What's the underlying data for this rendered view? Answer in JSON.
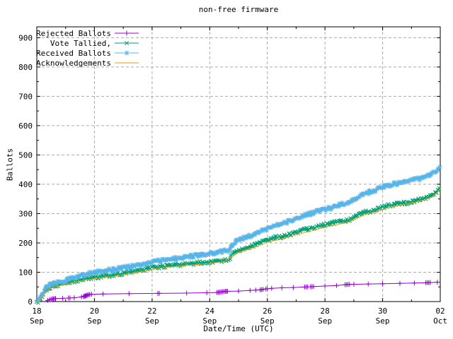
{
  "page": {
    "background": "#ffffff"
  },
  "chart_data": {
    "type": "line",
    "title": "non-free firmware",
    "xlabel": "Date/Time (UTC)",
    "ylabel": "Ballots",
    "xlim": [
      0,
      14
    ],
    "ylim": [
      0,
      937
    ],
    "x_axis_note": "x unit = days since 18 Sep 00:00 UTC",
    "x_major_ticks": [
      {
        "d": 0,
        "top": "18",
        "bot": "Sep"
      },
      {
        "d": 2,
        "top": "20",
        "bot": "Sep"
      },
      {
        "d": 4,
        "top": "22",
        "bot": "Sep"
      },
      {
        "d": 6,
        "top": "24",
        "bot": "Sep"
      },
      {
        "d": 8,
        "top": "26",
        "bot": "Sep"
      },
      {
        "d": 10,
        "top": "28",
        "bot": "Sep"
      },
      {
        "d": 12,
        "top": "30",
        "bot": "Sep"
      },
      {
        "d": 14,
        "top": "02",
        "bot": "Oct"
      }
    ],
    "x_minor_ticks": [
      1,
      3,
      5,
      7,
      9,
      11,
      13
    ],
    "y_major_ticks": [
      0,
      100,
      200,
      300,
      400,
      500,
      600,
      700,
      800,
      900
    ],
    "y_minor_ticks": [
      50,
      150,
      250,
      350,
      450,
      550,
      650,
      750,
      850
    ],
    "grid": {
      "show": true,
      "color": "#aaaaaa",
      "dash": "4,3"
    },
    "frame_color": "#000000",
    "legend": {
      "position": "top-left-inside"
    },
    "series": [
      {
        "name": "Rejected Ballots",
        "color": "#9400d3",
        "marker": "plus",
        "style": "linespoints-sparse",
        "points": [
          [
            0.3,
            0
          ],
          [
            0.38,
            4
          ],
          [
            0.45,
            7
          ],
          [
            0.55,
            9
          ],
          [
            0.65,
            10
          ],
          [
            0.9,
            11
          ],
          [
            1.1,
            12
          ],
          [
            1.3,
            13
          ],
          [
            1.5,
            15
          ],
          [
            1.62,
            17
          ],
          [
            1.7,
            20
          ],
          [
            1.78,
            23
          ],
          [
            1.9,
            25
          ],
          [
            2.3,
            26
          ],
          [
            3.2,
            27
          ],
          [
            4.2,
            28
          ],
          [
            5.2,
            29
          ],
          [
            5.9,
            30
          ],
          [
            6.25,
            31
          ],
          [
            6.4,
            33
          ],
          [
            6.55,
            35
          ],
          [
            7.0,
            36
          ],
          [
            7.4,
            38
          ],
          [
            7.75,
            40
          ],
          [
            7.95,
            43
          ],
          [
            8.15,
            45
          ],
          [
            8.5,
            47
          ],
          [
            8.9,
            48
          ],
          [
            9.3,
            50
          ],
          [
            9.6,
            51
          ],
          [
            10.0,
            53
          ],
          [
            10.4,
            55
          ],
          [
            10.75,
            58
          ],
          [
            11.0,
            59
          ],
          [
            11.5,
            60
          ],
          [
            12.0,
            61
          ],
          [
            12.6,
            62
          ],
          [
            13.1,
            63
          ],
          [
            13.5,
            64
          ],
          [
            13.65,
            65
          ],
          [
            13.9,
            66
          ],
          [
            14.0,
            67
          ]
        ],
        "marker_days": [
          0.38,
          0.45,
          0.5,
          0.55,
          0.58,
          0.62,
          0.65,
          0.9,
          1.1,
          1.15,
          1.3,
          1.55,
          1.62,
          1.65,
          1.68,
          1.7,
          1.73,
          1.76,
          1.8,
          1.84,
          1.9,
          2.3,
          3.2,
          4.2,
          4.25,
          5.2,
          5.9,
          6.25,
          6.3,
          6.35,
          6.4,
          6.45,
          6.5,
          6.55,
          6.58,
          6.62,
          7.0,
          7.4,
          7.6,
          7.75,
          7.8,
          7.85,
          7.95,
          8.0,
          8.15,
          8.5,
          8.9,
          9.3,
          9.35,
          9.4,
          9.5,
          9.55,
          9.6,
          10.0,
          10.4,
          10.7,
          10.75,
          10.8,
          10.85,
          11.0,
          11.5,
          12.0,
          12.6,
          13.1,
          13.5,
          13.55,
          13.6,
          13.65,
          13.9
        ]
      },
      {
        "name": "Vote Tallied,",
        "color": "#009e73",
        "marker": "cross",
        "style": "linespoints-dense",
        "points": [
          [
            0,
            0
          ],
          [
            0.05,
            2
          ],
          [
            0.1,
            7
          ],
          [
            0.15,
            13
          ],
          [
            0.2,
            20
          ],
          [
            0.25,
            28
          ],
          [
            0.3,
            36
          ],
          [
            0.4,
            45
          ],
          [
            0.5,
            50
          ],
          [
            0.6,
            54
          ],
          [
            0.8,
            58
          ],
          [
            1.0,
            62
          ],
          [
            1.2,
            68
          ],
          [
            1.4,
            73
          ],
          [
            1.6,
            77
          ],
          [
            1.8,
            80
          ],
          [
            2.0,
            82
          ],
          [
            2.2,
            85
          ],
          [
            2.5,
            89
          ],
          [
            2.8,
            93
          ],
          [
            3.1,
            98
          ],
          [
            3.4,
            103
          ],
          [
            3.7,
            108
          ],
          [
            4.0,
            116
          ],
          [
            4.3,
            119
          ],
          [
            4.6,
            122
          ],
          [
            5.0,
            126
          ],
          [
            5.4,
            130
          ],
          [
            5.8,
            133
          ],
          [
            6.0,
            135
          ],
          [
            6.3,
            139
          ],
          [
            6.5,
            141
          ],
          [
            6.65,
            143
          ],
          [
            6.75,
            156
          ],
          [
            6.85,
            166
          ],
          [
            7.0,
            175
          ],
          [
            7.2,
            183
          ],
          [
            7.5,
            192
          ],
          [
            7.8,
            202
          ],
          [
            8.0,
            208
          ],
          [
            8.2,
            216
          ],
          [
            8.5,
            222
          ],
          [
            8.8,
            229
          ],
          [
            9.0,
            237
          ],
          [
            9.3,
            246
          ],
          [
            9.6,
            252
          ],
          [
            9.9,
            259
          ],
          [
            10.2,
            266
          ],
          [
            10.5,
            273
          ],
          [
            10.8,
            279
          ],
          [
            11.0,
            288
          ],
          [
            11.2,
            299
          ],
          [
            11.4,
            305
          ],
          [
            11.7,
            311
          ],
          [
            12.0,
            322
          ],
          [
            12.2,
            327
          ],
          [
            12.5,
            332
          ],
          [
            12.8,
            337
          ],
          [
            13.0,
            341
          ],
          [
            13.3,
            348
          ],
          [
            13.6,
            357
          ],
          [
            13.8,
            368
          ],
          [
            13.9,
            378
          ],
          [
            14.0,
            390
          ]
        ]
      },
      {
        "name": "Received Ballots",
        "color": "#56b4e9",
        "marker": "asterisk",
        "style": "linespoints-dense",
        "points": [
          [
            0,
            0
          ],
          [
            0.05,
            3
          ],
          [
            0.1,
            10
          ],
          [
            0.15,
            18
          ],
          [
            0.2,
            27
          ],
          [
            0.25,
            36
          ],
          [
            0.3,
            44
          ],
          [
            0.4,
            53
          ],
          [
            0.5,
            58
          ],
          [
            0.6,
            62
          ],
          [
            0.8,
            67
          ],
          [
            1.0,
            72
          ],
          [
            1.2,
            79
          ],
          [
            1.4,
            85
          ],
          [
            1.6,
            90
          ],
          [
            1.8,
            95
          ],
          [
            2.0,
            100
          ],
          [
            2.2,
            104
          ],
          [
            2.5,
            108
          ],
          [
            2.8,
            112
          ],
          [
            3.1,
            117
          ],
          [
            3.4,
            122
          ],
          [
            3.7,
            128
          ],
          [
            4.0,
            136
          ],
          [
            4.3,
            140
          ],
          [
            4.6,
            144
          ],
          [
            5.0,
            150
          ],
          [
            5.4,
            155
          ],
          [
            5.8,
            160
          ],
          [
            6.0,
            163
          ],
          [
            6.3,
            169
          ],
          [
            6.5,
            172
          ],
          [
            6.65,
            175
          ],
          [
            6.75,
            190
          ],
          [
            6.85,
            200
          ],
          [
            7.0,
            208
          ],
          [
            7.2,
            217
          ],
          [
            7.5,
            228
          ],
          [
            7.8,
            240
          ],
          [
            8.0,
            248
          ],
          [
            8.2,
            258
          ],
          [
            8.5,
            266
          ],
          [
            8.8,
            275
          ],
          [
            9.0,
            284
          ],
          [
            9.3,
            295
          ],
          [
            9.6,
            303
          ],
          [
            9.9,
            312
          ],
          [
            10.2,
            320
          ],
          [
            10.5,
            329
          ],
          [
            10.8,
            337
          ],
          [
            11.0,
            348
          ],
          [
            11.2,
            362
          ],
          [
            11.4,
            370
          ],
          [
            11.7,
            378
          ],
          [
            12.0,
            392
          ],
          [
            12.2,
            397
          ],
          [
            12.5,
            403
          ],
          [
            12.8,
            408
          ],
          [
            13.0,
            413
          ],
          [
            13.3,
            420
          ],
          [
            13.6,
            429
          ],
          [
            13.8,
            440
          ],
          [
            13.9,
            448
          ],
          [
            14.0,
            456
          ]
        ]
      },
      {
        "name": "Acknowledgements",
        "color": "#e69f00",
        "marker": "none",
        "style": "line",
        "points": [
          [
            0,
            0
          ],
          [
            0.1,
            5
          ],
          [
            0.2,
            16
          ],
          [
            0.3,
            31
          ],
          [
            0.4,
            41
          ],
          [
            0.5,
            46
          ],
          [
            0.7,
            52
          ],
          [
            1.0,
            58
          ],
          [
            1.4,
            68
          ],
          [
            1.8,
            75
          ],
          [
            2.0,
            78
          ],
          [
            2.5,
            84
          ],
          [
            3.0,
            91
          ],
          [
            3.5,
            99
          ],
          [
            4.0,
            110
          ],
          [
            4.5,
            117
          ],
          [
            5.0,
            121
          ],
          [
            5.5,
            126
          ],
          [
            6.0,
            130
          ],
          [
            6.5,
            136
          ],
          [
            6.75,
            150
          ],
          [
            7.0,
            168
          ],
          [
            7.3,
            178
          ],
          [
            7.6,
            186
          ],
          [
            8.0,
            202
          ],
          [
            8.4,
            212
          ],
          [
            8.8,
            222
          ],
          [
            9.2,
            233
          ],
          [
            9.6,
            243
          ],
          [
            10.0,
            254
          ],
          [
            10.4,
            262
          ],
          [
            10.8,
            271
          ],
          [
            11.1,
            283
          ],
          [
            11.4,
            298
          ],
          [
            11.8,
            306
          ],
          [
            12.2,
            320
          ],
          [
            12.6,
            328
          ],
          [
            13.0,
            336
          ],
          [
            13.4,
            345
          ],
          [
            13.7,
            356
          ],
          [
            13.9,
            372
          ],
          [
            14.0,
            386
          ]
        ]
      }
    ]
  }
}
